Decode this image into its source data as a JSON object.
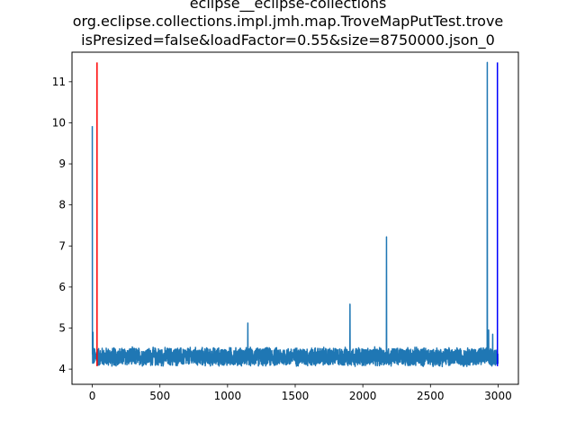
{
  "chart_data": {
    "type": "line",
    "title_lines": [
      "eclipse__eclipse-collections",
      "org.eclipse.collections.impl.jmh.map.TroveMapPutTest.trove",
      "isPresized=false&loadFactor=0.55&size=8750000.json_0"
    ],
    "xlabel": "",
    "ylabel": "",
    "xlim": [
      -150,
      3150
    ],
    "ylim": [
      3.63,
      11.72
    ],
    "xticks": [
      0,
      500,
      1000,
      1500,
      2000,
      2500,
      3000
    ],
    "yticks": [
      4,
      5,
      6,
      7,
      8,
      9,
      10,
      11
    ],
    "grid": false,
    "series": [
      {
        "color": "#1f77b4",
        "n_points": 3000,
        "baseline": 4.3,
        "noise_amplitude": 0.25,
        "spikes": [
          {
            "x": 0,
            "y": 9.92
          },
          {
            "x": 5,
            "y": 4.9
          },
          {
            "x": 1150,
            "y": 5.12
          },
          {
            "x": 1905,
            "y": 5.58
          },
          {
            "x": 2175,
            "y": 7.22
          },
          {
            "x": 2920,
            "y": 11.47
          },
          {
            "x": 2930,
            "y": 4.95
          },
          {
            "x": 2960,
            "y": 4.85
          }
        ]
      }
    ],
    "vlines": [
      {
        "x": 35,
        "ymin": 4.07,
        "ymax": 11.47,
        "color": "#ff0000"
      },
      {
        "x": 2995,
        "ymin": 4.07,
        "ymax": 11.47,
        "color": "#0000ff"
      }
    ]
  }
}
